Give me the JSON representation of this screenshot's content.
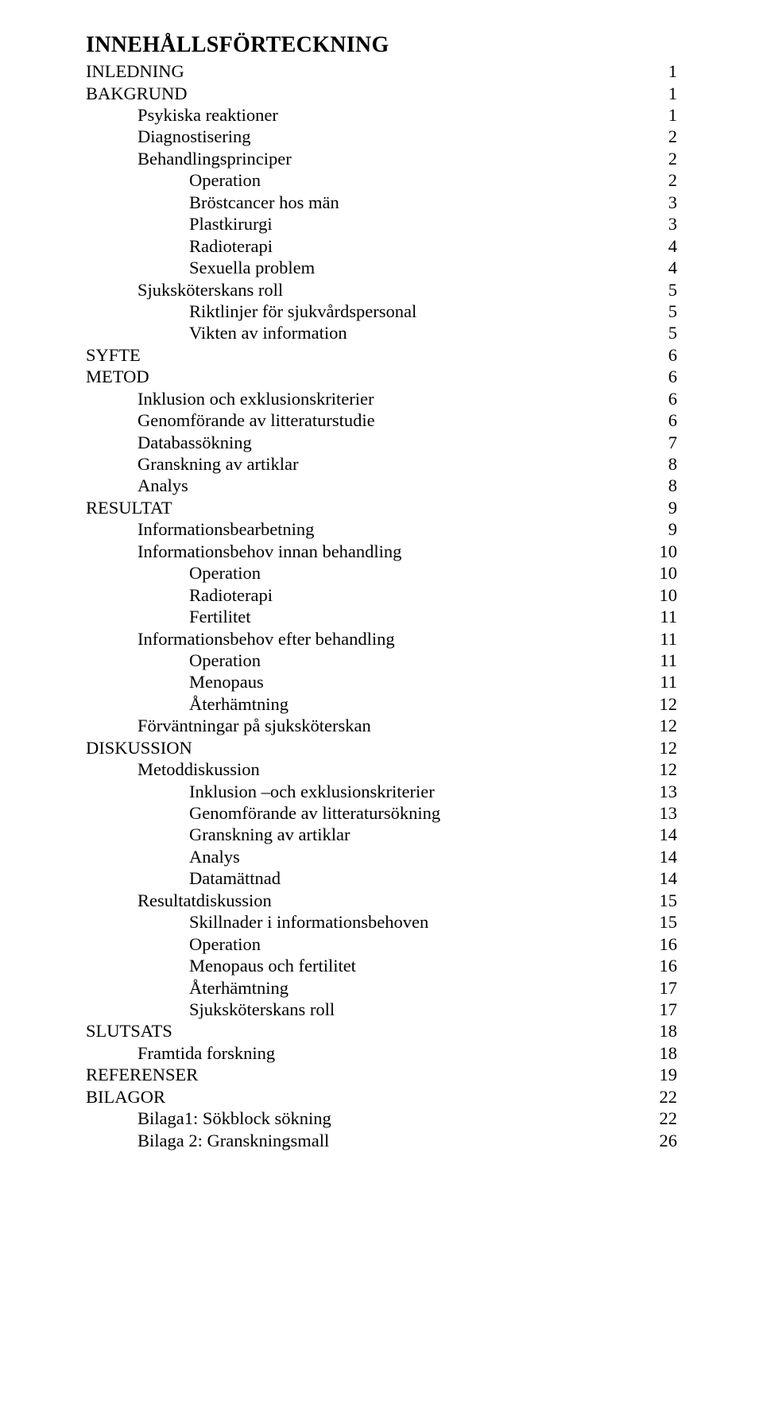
{
  "title": "INNEHÅLLSFÖRTECKNING",
  "entries": [
    {
      "label": "INLEDNING",
      "page": "1",
      "level": 0
    },
    {
      "label": "BAKGRUND",
      "page": "1",
      "level": 0
    },
    {
      "label": "Psykiska reaktioner",
      "page": "1",
      "level": 1
    },
    {
      "label": "Diagnostisering",
      "page": "2",
      "level": 1
    },
    {
      "label": "Behandlingsprinciper",
      "page": "2",
      "level": 1
    },
    {
      "label": "Operation",
      "page": "2",
      "level": 2
    },
    {
      "label": "Bröstcancer hos män",
      "page": "3",
      "level": 2
    },
    {
      "label": "Plastkirurgi",
      "page": "3",
      "level": 2
    },
    {
      "label": "Radioterapi",
      "page": "4",
      "level": 2
    },
    {
      "label": "Sexuella problem",
      "page": "4",
      "level": 2
    },
    {
      "label": "Sjuksköterskans roll",
      "page": "5",
      "level": 1
    },
    {
      "label": "Riktlinjer för sjukvårdspersonal",
      "page": "5",
      "level": 2
    },
    {
      "label": "Vikten av information",
      "page": "5",
      "level": 2
    },
    {
      "label": "SYFTE",
      "page": "6",
      "level": 0
    },
    {
      "label": "METOD",
      "page": "6",
      "level": 0
    },
    {
      "label": "Inklusion och exklusionskriterier",
      "page": "6",
      "level": 1
    },
    {
      "label": "Genomförande av litteraturstudie",
      "page": "6",
      "level": 1
    },
    {
      "label": "Databassökning",
      "page": "7",
      "level": 1
    },
    {
      "label": "Granskning av artiklar",
      "page": "8",
      "level": 1
    },
    {
      "label": "Analys",
      "page": "8",
      "level": 1
    },
    {
      "label": "RESULTAT",
      "page": "9",
      "level": 0
    },
    {
      "label": "Informationsbearbetning",
      "page": "9",
      "level": 1
    },
    {
      "label": "Informationsbehov innan behandling",
      "page": "10",
      "level": 1
    },
    {
      "label": "Operation",
      "page": "10",
      "level": 2
    },
    {
      "label": "Radioterapi",
      "page": "10",
      "level": 2
    },
    {
      "label": "Fertilitet",
      "page": "11",
      "level": 2
    },
    {
      "label": "Informationsbehov efter behandling",
      "page": "11",
      "level": 1
    },
    {
      "label": "Operation",
      "page": "11",
      "level": 2
    },
    {
      "label": "Menopaus",
      "page": "11",
      "level": 2
    },
    {
      "label": "Återhämtning",
      "page": "12",
      "level": 2
    },
    {
      "label": "Förväntningar på sjuksköterskan",
      "page": "12",
      "level": 1
    },
    {
      "label": "DISKUSSION",
      "page": "12",
      "level": 0
    },
    {
      "label": "Metoddiskussion",
      "page": "12",
      "level": 1
    },
    {
      "label": "Inklusion –och exklusionskriterier",
      "page": "13",
      "level": 2
    },
    {
      "label": "Genomförande av litteratursökning",
      "page": "13",
      "level": 2
    },
    {
      "label": "Granskning av artiklar",
      "page": "14",
      "level": 2
    },
    {
      "label": "Analys",
      "page": "14",
      "level": 2
    },
    {
      "label": "Datamättnad",
      "page": "14",
      "level": 2
    },
    {
      "label": "Resultatdiskussion",
      "page": "15",
      "level": 1
    },
    {
      "label": "Skillnader i informationsbehoven",
      "page": "15",
      "level": 2
    },
    {
      "label": "Operation",
      "page": "16",
      "level": 2
    },
    {
      "label": "Menopaus och fertilitet",
      "page": "16",
      "level": 2
    },
    {
      "label": "Återhämtning",
      "page": "17",
      "level": 2
    },
    {
      "label": "Sjuksköterskans roll",
      "page": "17",
      "level": 2
    },
    {
      "label": "SLUTSATS",
      "page": "18",
      "level": 0
    },
    {
      "label": "Framtida forskning",
      "page": "18",
      "level": 1
    },
    {
      "label": "REFERENSER",
      "page": "19",
      "level": 0
    },
    {
      "label": "BILAGOR",
      "page": "22",
      "level": 0
    },
    {
      "label": "Bilaga1: Sökblock sökning",
      "page": "22",
      "level": 1
    },
    {
      "label": "Bilaga 2: Granskningsmall",
      "page": "26",
      "level": 1
    }
  ]
}
